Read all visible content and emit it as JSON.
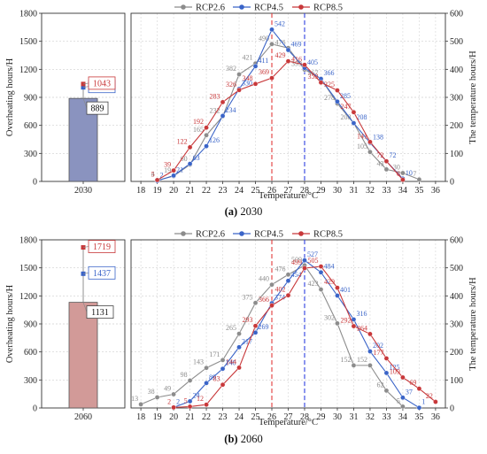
{
  "chart_data": [
    {
      "type": "bar+line",
      "caption_letter": "(a)",
      "caption_text": "2030",
      "bar": {
        "ylabel": "Overheating hours/H",
        "ylim": [
          0,
          1800
        ],
        "yticks": [
          "0",
          "300",
          "600",
          "900",
          "1200",
          "1500",
          "1800"
        ],
        "category": "2030",
        "value": 889,
        "color": "#8a93bf",
        "labels": [
          {
            "series": "RCP2.6",
            "value": 889,
            "text": "889"
          },
          {
            "series": "RCP4.5",
            "value": 1007,
            "text": "1007"
          },
          {
            "series": "RCP8.5",
            "value": 1043,
            "text": "1043"
          }
        ]
      },
      "line": {
        "xlabel": "Temperature/°C",
        "ylabel": "The temperature hours/H",
        "ylim": [
          0,
          600
        ],
        "yticks": [
          "0",
          "100",
          "200",
          "300",
          "400",
          "500",
          "600"
        ],
        "xticks": [
          "18",
          "19",
          "20",
          "21",
          "22",
          "23",
          "24",
          "25",
          "26",
          "27",
          "28",
          "29",
          "30",
          "31",
          "32",
          "33",
          "34",
          "35",
          "36"
        ],
        "vlines": [
          {
            "x": 26,
            "color": "#e23a3a"
          },
          {
            "x": 28,
            "color": "#2f3fe0"
          }
        ],
        "legend": [
          "RCP2.6",
          "RCP4.5",
          "RCP8.5"
        ],
        "series": [
          {
            "name": "RCP2.6",
            "color": "#8c8c8c",
            "x": [
              19,
              20,
              21,
              22,
              23,
              24,
              25,
              26,
              27,
              28,
              29,
              30,
              31,
              32,
              33,
              34,
              35
            ],
            "values": [
              4,
              19,
              60,
              165,
              232,
              382,
              421,
              490,
              476,
              399,
              367,
              278,
              208,
              105,
              43,
              30,
              7
            ]
          },
          {
            "name": "RCP4.5",
            "color": "#3a64c8",
            "x": [
              19,
              20,
              21,
              22,
              23,
              24,
              25,
              26,
              27,
              28,
              29,
              30,
              31,
              32,
              33,
              34
            ],
            "values": [
              2,
              21,
              63,
              126,
              234,
              330,
              411,
              542,
              469,
              405,
              366,
              285,
              208,
              138,
              72,
              10
            ]
          },
          {
            "name": "RCP8.5",
            "color": "#c8383a",
            "x": [
              19,
              20,
              21,
              22,
              23,
              24,
              25,
              26,
              27,
              28,
              29,
              30,
              31,
              32,
              33,
              34
            ],
            "values": [
              5,
              39,
              122,
              192,
              283,
              326,
              348,
              369,
              429,
              416,
              353,
              325,
              247,
              141,
              72,
              6
            ]
          }
        ]
      }
    },
    {
      "type": "bar+line",
      "caption_letter": "(b)",
      "caption_text": "2060",
      "bar": {
        "ylabel": "Overheating hours/H",
        "ylim": [
          0,
          1800
        ],
        "yticks": [
          "0",
          "300",
          "600",
          "900",
          "1200",
          "1500",
          "1800"
        ],
        "category": "2060",
        "value": 1131,
        "color": "#d29a98",
        "labels": [
          {
            "series": "RCP2.6",
            "value": 1131,
            "text": "1131"
          },
          {
            "series": "RCP4.5",
            "value": 1437,
            "text": "1437"
          },
          {
            "series": "RCP8.5",
            "value": 1719,
            "text": "1719"
          }
        ]
      },
      "line": {
        "xlabel": "Temperature/°C",
        "ylabel": "The temperature hours/H",
        "ylim": [
          0,
          600
        ],
        "yticks": [
          "0",
          "100",
          "200",
          "300",
          "400",
          "500",
          "600"
        ],
        "xticks": [
          "18",
          "19",
          "20",
          "21",
          "22",
          "23",
          "24",
          "25",
          "26",
          "27",
          "28",
          "29",
          "30",
          "31",
          "32",
          "33",
          "34",
          "35",
          "36"
        ],
        "vlines": [
          {
            "x": 26,
            "color": "#e23a3a"
          },
          {
            "x": 28,
            "color": "#2f3fe0"
          }
        ],
        "legend": [
          "RCP2.6",
          "RCP4.5",
          "RCP8.5"
        ],
        "series": [
          {
            "name": "RCP2.6",
            "color": "#8c8c8c",
            "x": [
              18,
              19,
              20,
              21,
              22,
              23,
              24,
              25,
              26,
              27,
              28,
              29,
              30,
              31,
              32,
              33,
              34
            ],
            "values": [
              13,
              38,
              49,
              98,
              143,
              171,
              265,
              375,
              440,
              476,
              509,
              423,
              302,
              152,
              152,
              62,
              5
            ]
          },
          {
            "name": "RCP4.5",
            "color": "#3a64c8",
            "x": [
              20,
              21,
              22,
              23,
              24,
              25,
              26,
              27,
              28,
              29,
              30,
              31,
              32,
              33,
              34,
              35
            ],
            "values": [
              2,
              24,
              89,
              140,
              217,
              269,
              374,
              454,
              527,
              484,
              401,
              316,
              202,
              125,
              37,
              1
            ]
          },
          {
            "name": "RCP8.5",
            "color": "#c8383a",
            "x": [
              20,
              21,
              22,
              23,
              24,
              25,
              26,
              27,
              28,
              29,
              30,
              31,
              32,
              33,
              34,
              35,
              36
            ],
            "values": [
              2,
              5,
              12,
              83,
              144,
              293,
              366,
              402,
              499,
              505,
              429,
              292,
              264,
              177,
              109,
              69,
              22
            ]
          }
        ]
      }
    }
  ]
}
